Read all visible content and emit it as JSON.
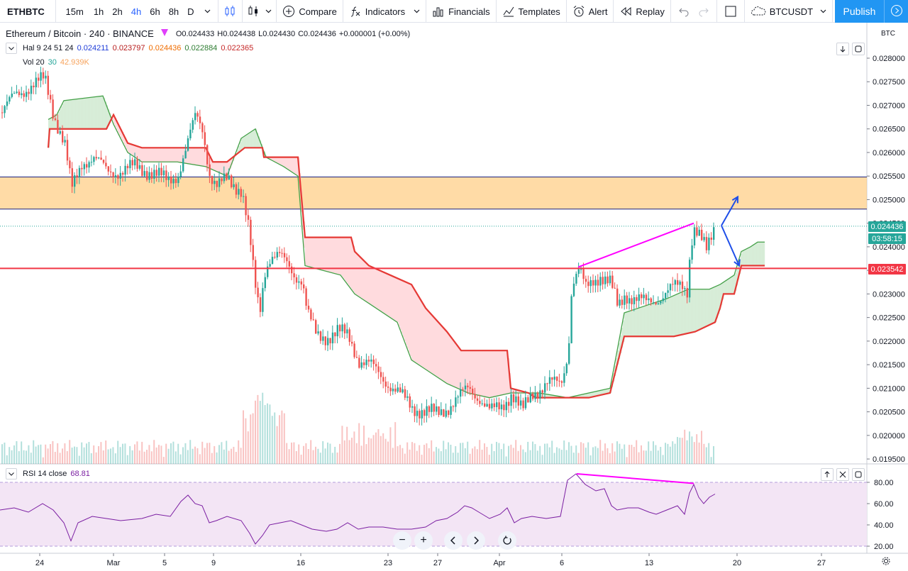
{
  "toolbar": {
    "symbol": "ETHBTC",
    "intervals": [
      "15m",
      "1h",
      "2h",
      "4h",
      "6h",
      "8h",
      "D"
    ],
    "active_interval": "4h",
    "compare": "Compare",
    "indicators": "Indicators",
    "financials": "Financials",
    "templates": "Templates",
    "alert": "Alert",
    "replay": "Replay",
    "compare_symbol": "BTCUSDT",
    "publish": "Publish"
  },
  "legend": {
    "title": "Ethereum / Bitcoin · 240 · BINANCE",
    "ohlc": {
      "o": "O0.024433",
      "h": "H0.024438",
      "l": "L0.024430",
      "c": "C0.024436",
      "chg": "+0.000001 (+0.00%)"
    },
    "hal": {
      "label": "Hal 9 24 51 24",
      "v1": "0.024211",
      "v2": "0.023797",
      "v3": "0.024436",
      "v4": "0.022884",
      "v5": "0.022365"
    },
    "vol": {
      "label": "Vol 20",
      "v1": "30",
      "v2": "42.939K"
    }
  },
  "rsi_legend": {
    "label": "RSI 14 close",
    "value": "68.81"
  },
  "price_axis": {
    "currency": "BTC",
    "ticks": [
      "0.028000",
      "0.027500",
      "0.027000",
      "0.026500",
      "0.026000",
      "0.025500",
      "0.025000",
      "0.024500",
      "0.024000",
      "0.023500",
      "0.023000",
      "0.022500",
      "0.022000",
      "0.021500",
      "0.021000",
      "0.020500",
      "0.020000",
      "0.019500"
    ],
    "last_price": "0.024436",
    "countdown": "03:58:15",
    "line_price": "0.023542"
  },
  "rsi_axis": {
    "ticks": [
      "80.00",
      "60.00",
      "40.00",
      "20.00"
    ]
  },
  "time_axis": {
    "labels": [
      "24",
      "Mar",
      "5",
      "9",
      "16",
      "23",
      "27",
      "Apr",
      "6",
      "13",
      "20",
      "27"
    ]
  },
  "colors": {
    "up": "#26a69a",
    "down": "#ef5350",
    "hal_red": "#e53935",
    "hal_green": "#43a047",
    "zone": "#ffcc80",
    "hline": "#f23645",
    "trend": "#ff00ff",
    "arrow": "#1e4ee8",
    "rsi": "#7b1fa2",
    "rsi_band": "#f3e5f5"
  },
  "chart_data": {
    "type": "candlestick",
    "symbol": "ETHBTC",
    "interval": "240",
    "price_path": [
      [
        0,
        0.02685
      ],
      [
        20,
        0.0272
      ],
      [
        40,
        0.0274
      ],
      [
        62,
        0.02755
      ],
      [
        75,
        0.0268
      ],
      [
        90,
        0.0262
      ],
      [
        100,
        0.0252
      ],
      [
        115,
        0.0258
      ],
      [
        130,
        0.0259
      ],
      [
        150,
        0.0256
      ],
      [
        170,
        0.0256
      ],
      [
        190,
        0.0257
      ],
      [
        210,
        0.0256
      ],
      [
        235,
        0.0254
      ],
      [
        250,
        0.02555
      ],
      [
        262,
        0.0261
      ],
      [
        275,
        0.0268
      ],
      [
        285,
        0.0265
      ],
      [
        295,
        0.0255
      ],
      [
        305,
        0.02525
      ],
      [
        320,
        0.02545
      ],
      [
        340,
        0.0252
      ],
      [
        350,
        0.0243
      ],
      [
        358,
        0.0232
      ],
      [
        365,
        0.0226
      ],
      [
        372,
        0.0235
      ],
      [
        380,
        0.0238
      ],
      [
        392,
        0.0238
      ],
      [
        405,
        0.0236
      ],
      [
        415,
        0.0234
      ],
      [
        425,
        0.0233
      ],
      [
        432,
        0.0226
      ],
      [
        445,
        0.0221
      ],
      [
        460,
        0.0221
      ],
      [
        475,
        0.0222
      ],
      [
        490,
        0.0221
      ],
      [
        505,
        0.0216
      ],
      [
        520,
        0.0215
      ],
      [
        540,
        0.0212
      ],
      [
        560,
        0.0209
      ],
      [
        580,
        0.0206
      ],
      [
        600,
        0.0205
      ],
      [
        615,
        0.02045
      ],
      [
        630,
        0.0206
      ],
      [
        645,
        0.0208
      ],
      [
        660,
        0.021
      ],
      [
        675,
        0.0208
      ],
      [
        690,
        0.0205
      ],
      [
        705,
        0.0206
      ],
      [
        720,
        0.0209
      ],
      [
        735,
        0.0205
      ],
      [
        750,
        0.0209
      ],
      [
        770,
        0.0211
      ],
      [
        790,
        0.0211
      ],
      [
        800,
        0.0218
      ],
      [
        805,
        0.0232
      ],
      [
        815,
        0.0235
      ],
      [
        825,
        0.0231
      ],
      [
        835,
        0.0233
      ],
      [
        845,
        0.0234
      ],
      [
        860,
        0.0232
      ],
      [
        870,
        0.0227
      ],
      [
        880,
        0.023
      ],
      [
        895,
        0.0229
      ],
      [
        910,
        0.0228
      ],
      [
        925,
        0.0229
      ],
      [
        945,
        0.0231
      ],
      [
        960,
        0.0232
      ],
      [
        968,
        0.0231
      ],
      [
        972,
        0.024
      ],
      [
        977,
        0.0244
      ],
      [
        985,
        0.0242
      ],
      [
        995,
        0.0239
      ],
      [
        1005,
        0.0244
      ]
    ],
    "hal_upper": [
      [
        68,
        0.0261
      ],
      [
        70,
        0.0265
      ],
      [
        150,
        0.0265
      ],
      [
        160,
        0.0268
      ],
      [
        180,
        0.0262
      ],
      [
        200,
        0.0261
      ],
      [
        290,
        0.0261
      ],
      [
        300,
        0.0258
      ],
      [
        320,
        0.0258
      ],
      [
        345,
        0.0261
      ],
      [
        370,
        0.0261
      ],
      [
        372,
        0.0259
      ],
      [
        420,
        0.0259
      ],
      [
        430,
        0.0242
      ],
      [
        495,
        0.0242
      ],
      [
        500,
        0.0239
      ],
      [
        520,
        0.0236
      ],
      [
        550,
        0.0234
      ],
      [
        580,
        0.0232
      ],
      [
        600,
        0.0227
      ],
      [
        630,
        0.0222
      ],
      [
        650,
        0.0218
      ],
      [
        715,
        0.0218
      ],
      [
        720,
        0.021
      ],
      [
        745,
        0.0209
      ],
      [
        755,
        0.0208
      ],
      [
        830,
        0.0208
      ],
      [
        860,
        0.0209
      ],
      [
        880,
        0.0221
      ],
      [
        950,
        0.0221
      ],
      [
        980,
        0.0222
      ],
      [
        1008,
        0.0224
      ],
      [
        1015,
        0.0227
      ],
      [
        1020,
        0.023
      ],
      [
        1035,
        0.023
      ],
      [
        1045,
        0.0236
      ],
      [
        1078,
        0.0236
      ]
    ],
    "hal_lower": [
      [
        68,
        0.0267
      ],
      [
        80,
        0.0268
      ],
      [
        90,
        0.0271
      ],
      [
        145,
        0.0272
      ],
      [
        160,
        0.0266
      ],
      [
        180,
        0.026
      ],
      [
        200,
        0.0258
      ],
      [
        250,
        0.0258
      ],
      [
        290,
        0.0257
      ],
      [
        320,
        0.0255
      ],
      [
        340,
        0.0263
      ],
      [
        360,
        0.0265
      ],
      [
        375,
        0.0259
      ],
      [
        400,
        0.0257
      ],
      [
        420,
        0.0255
      ],
      [
        430,
        0.0236
      ],
      [
        480,
        0.0234
      ],
      [
        500,
        0.023
      ],
      [
        520,
        0.0228
      ],
      [
        560,
        0.0224
      ],
      [
        580,
        0.0216
      ],
      [
        600,
        0.0214
      ],
      [
        630,
        0.0211
      ],
      [
        660,
        0.0209
      ],
      [
        690,
        0.0208
      ],
      [
        720,
        0.0209
      ],
      [
        745,
        0.0209
      ],
      [
        760,
        0.0209
      ],
      [
        800,
        0.0208
      ],
      [
        860,
        0.021
      ],
      [
        880,
        0.0226
      ],
      [
        940,
        0.0229
      ],
      [
        970,
        0.0231
      ],
      [
        1000,
        0.0231
      ],
      [
        1015,
        0.0232
      ],
      [
        1035,
        0.0234
      ],
      [
        1045,
        0.0239
      ],
      [
        1058,
        0.024
      ],
      [
        1068,
        0.0241
      ],
      [
        1078,
        0.0241
      ]
    ],
    "resistance_zone": [
      0.0248,
      0.02548
    ],
    "support_line": 0.023542,
    "trendline": [
      [
        815,
        0.02357
      ],
      [
        978,
        0.0245
      ]
    ],
    "scenario_up": [
      [
        1017,
        0.02445
      ],
      [
        1040,
        0.02506
      ]
    ],
    "scenario_down": [
      [
        1017,
        0.02445
      ],
      [
        1042,
        0.0236
      ]
    ],
    "rsi_path": [
      [
        0,
        54
      ],
      [
        20,
        56
      ],
      [
        40,
        52
      ],
      [
        60,
        60
      ],
      [
        75,
        54
      ],
      [
        90,
        42
      ],
      [
        100,
        25
      ],
      [
        110,
        42
      ],
      [
        130,
        48
      ],
      [
        150,
        46
      ],
      [
        170,
        44
      ],
      [
        200,
        46
      ],
      [
        220,
        50
      ],
      [
        240,
        48
      ],
      [
        255,
        62
      ],
      [
        265,
        68
      ],
      [
        275,
        60
      ],
      [
        285,
        58
      ],
      [
        295,
        42
      ],
      [
        305,
        44
      ],
      [
        320,
        48
      ],
      [
        340,
        44
      ],
      [
        352,
        32
      ],
      [
        360,
        22
      ],
      [
        370,
        30
      ],
      [
        380,
        40
      ],
      [
        395,
        42
      ],
      [
        410,
        44
      ],
      [
        425,
        40
      ],
      [
        440,
        36
      ],
      [
        460,
        34
      ],
      [
        475,
        36
      ],
      [
        490,
        42
      ],
      [
        505,
        36
      ],
      [
        520,
        38
      ],
      [
        540,
        38
      ],
      [
        560,
        36
      ],
      [
        580,
        36
      ],
      [
        600,
        38
      ],
      [
        615,
        44
      ],
      [
        630,
        46
      ],
      [
        645,
        52
      ],
      [
        655,
        58
      ],
      [
        665,
        56
      ],
      [
        675,
        52
      ],
      [
        690,
        46
      ],
      [
        705,
        50
      ],
      [
        715,
        56
      ],
      [
        725,
        42
      ],
      [
        735,
        46
      ],
      [
        750,
        48
      ],
      [
        770,
        46
      ],
      [
        790,
        48
      ],
      [
        800,
        82
      ],
      [
        812,
        88
      ],
      [
        825,
        78
      ],
      [
        840,
        72
      ],
      [
        852,
        74
      ],
      [
        862,
        58
      ],
      [
        870,
        54
      ],
      [
        885,
        56
      ],
      [
        900,
        56
      ],
      [
        915,
        52
      ],
      [
        925,
        50
      ],
      [
        940,
        54
      ],
      [
        955,
        58
      ],
      [
        965,
        50
      ],
      [
        972,
        70
      ],
      [
        978,
        78
      ],
      [
        985,
        66
      ],
      [
        992,
        60
      ],
      [
        1000,
        66
      ],
      [
        1008,
        69
      ]
    ],
    "rsi_divergence": [
      [
        813,
        88
      ],
      [
        978,
        79
      ]
    ],
    "rsi_bands": [
      20,
      80
    ]
  }
}
